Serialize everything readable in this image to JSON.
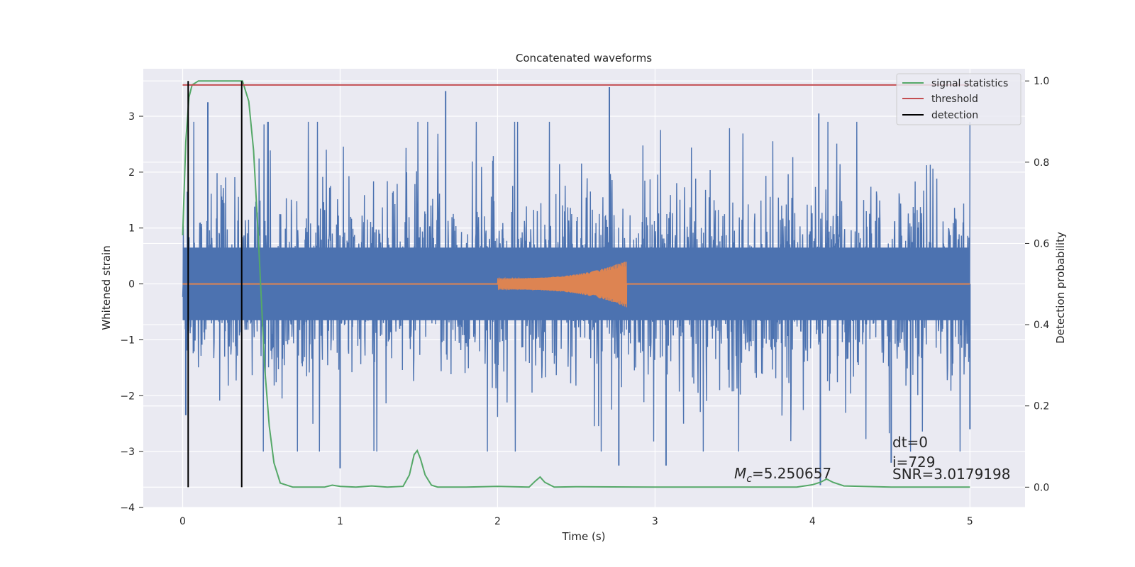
{
  "chart_data": {
    "type": "line",
    "title": "Concatenated waveforms",
    "xlabel": "Time (s)",
    "ylabel": "Whitened strain",
    "y2label": "Detection probability",
    "xlim": [
      -0.25,
      5.35
    ],
    "ylim": [
      -4.0,
      3.85
    ],
    "y2lim": [
      -0.05,
      1.03
    ],
    "x_ticks": [
      0,
      1,
      2,
      3,
      4,
      5
    ],
    "x_tick_labels": [
      "0",
      "1",
      "2",
      "3",
      "4",
      "5"
    ],
    "y_ticks": [
      -4,
      -3,
      -2,
      -1,
      0,
      1,
      2,
      3
    ],
    "y_tick_labels": [
      "−4",
      "−3",
      "−2",
      "−1",
      "0",
      "1",
      "2",
      "3"
    ],
    "y2_ticks": [
      0.0,
      0.2,
      0.4,
      0.6,
      0.8,
      1.0
    ],
    "y2_tick_labels": [
      "0.0",
      "0.2",
      "0.4",
      "0.6",
      "0.8",
      "1.0"
    ],
    "grid": true,
    "legend_position": "top-right",
    "colors": {
      "strain": "#4c72b0",
      "waveform": "#dd8452",
      "signal": "#55a868",
      "threshold": "#c44e52",
      "detection": "#000000",
      "background": "#eaeaf2",
      "grid": "#ffffff"
    },
    "strain": {
      "x_range": [
        0,
        5
      ],
      "core_amplitude": 0.65,
      "peak_envelope": 2.2,
      "notable_peaks": [
        {
          "x": 0.03,
          "y": 1.65
        },
        {
          "x": 0.02,
          "y": -2.35
        },
        {
          "x": 0.16,
          "y": 3.25
        },
        {
          "x": 1.0,
          "y": -3.3
        },
        {
          "x": 1.67,
          "y": 3.45
        },
        {
          "x": 2.71,
          "y": 3.52
        },
        {
          "x": 2.77,
          "y": -3.25
        },
        {
          "x": 3.07,
          "y": -3.25
        },
        {
          "x": 4.04,
          "y": 3.05
        },
        {
          "x": 4.05,
          "y": -3.6
        },
        {
          "x": 4.5,
          "y": -3.2
        },
        {
          "x": 5.0,
          "y": -2.6
        }
      ]
    },
    "waveform": {
      "x_start": 2.0,
      "x_end": 2.82,
      "amp_start": 0.1,
      "amp_end": 0.42
    },
    "series": [
      {
        "name": "signal statistics",
        "axis": "right",
        "x": [
          0.0,
          0.02,
          0.04,
          0.06,
          0.1,
          0.2,
          0.3,
          0.38,
          0.42,
          0.45,
          0.48,
          0.5,
          0.52,
          0.55,
          0.58,
          0.62,
          0.7,
          0.8,
          0.9,
          0.95,
          1.0,
          1.1,
          1.2,
          1.3,
          1.4,
          1.44,
          1.47,
          1.49,
          1.51,
          1.54,
          1.58,
          1.62,
          1.8,
          2.0,
          2.2,
          2.24,
          2.27,
          2.3,
          2.36,
          2.5,
          3.0,
          3.5,
          3.9,
          4.0,
          4.05,
          4.09,
          4.13,
          4.2,
          4.5,
          5.0
        ],
        "y": [
          0.62,
          0.85,
          0.96,
          0.99,
          1.0,
          1.0,
          1.0,
          1.0,
          0.95,
          0.83,
          0.62,
          0.46,
          0.3,
          0.15,
          0.06,
          0.01,
          0.0,
          0.0,
          0.0,
          0.005,
          0.002,
          0.0,
          0.003,
          0.0,
          0.002,
          0.03,
          0.08,
          0.09,
          0.07,
          0.03,
          0.005,
          0.0,
          0.0,
          0.002,
          0.0,
          0.015,
          0.025,
          0.012,
          0.0,
          0.001,
          0.0,
          0.0,
          0.0,
          0.006,
          0.012,
          0.02,
          0.012,
          0.003,
          0.0,
          0.0
        ]
      },
      {
        "name": "threshold",
        "axis": "right",
        "x": [
          0.0,
          5.0
        ],
        "y": [
          0.99,
          0.99
        ]
      },
      {
        "name": "detection",
        "axis": "right",
        "type": "vlines",
        "x": [
          0.035,
          0.375
        ],
        "y": [
          0.0,
          1.0
        ]
      }
    ],
    "legend": [
      "signal statistics",
      "threshold",
      "detection"
    ],
    "annotations": {
      "mc": "M",
      "mc_sub": "c",
      "mc_value": "=5.250657",
      "dt": "dt=0",
      "i": "i=729",
      "snr": "SNR=3.0179198"
    }
  }
}
